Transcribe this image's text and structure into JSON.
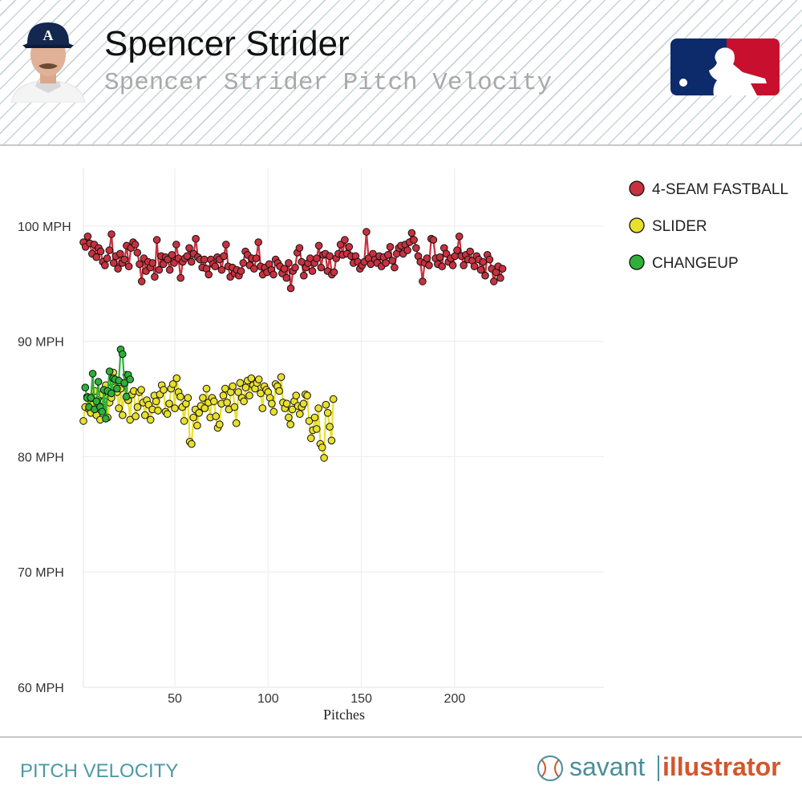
{
  "header": {
    "title": "Spencer Strider",
    "subtitle": "Spencer Strider Pitch Velocity"
  },
  "footer": {
    "section_label": "PITCH VELOCITY",
    "brand_left": "savant",
    "brand_right": "illustrator"
  },
  "colors": {
    "fastball": "#c8313f",
    "slider": "#e9e02c",
    "changeup": "#2eb03a",
    "footer_teal": "#4a9aa5",
    "brand_orange": "#d3572c",
    "mlb_blue": "#0d2a6b",
    "mlb_red": "#c8102e"
  },
  "icons": {
    "avatar": "player-headshot",
    "league_logo": "mlb-logo",
    "brand": "baseball-icon"
  },
  "chart_data": {
    "type": "line",
    "title": "",
    "xlabel": "Pitches",
    "ylabel": "",
    "xlim": [
      1,
      280
    ],
    "ylim": [
      60,
      105
    ],
    "x_ticks": [
      50,
      100,
      150,
      200
    ],
    "y_ticks": [
      {
        "value": 100,
        "label": "100 MPH"
      },
      {
        "value": 90,
        "label": "90 MPH"
      },
      {
        "value": 80,
        "label": "80 MPH"
      },
      {
        "value": 70,
        "label": "70 MPH"
      },
      {
        "value": 60,
        "label": "60 MPH"
      }
    ],
    "grid": true,
    "legend": "right",
    "series": [
      {
        "name": "4-SEAM FASTBALL",
        "x_start": 1,
        "x_step": 1.158,
        "values": [
          98.6,
          98.2,
          99.1,
          98.5,
          97.6,
          98.4,
          97.3,
          98.1,
          97.8,
          96.9,
          96.6,
          97.2,
          97.9,
          99.3,
          96.8,
          97.4,
          96.3,
          97.6,
          96.8,
          97.1,
          98.3,
          96.5,
          98.1,
          98.6,
          98.4,
          97.7,
          96.7,
          95.2,
          97.2,
          96.1,
          96.9,
          96.4,
          96.8,
          95.6,
          98.8,
          96.2,
          97.4,
          96.7,
          97.3,
          97.1,
          96.2,
          97.5,
          96.8,
          98.4,
          97.2,
          95.5,
          96.9,
          97.2,
          97.4,
          98.1,
          96.9,
          97.6,
          98.9,
          97.3,
          97.1,
          96.4,
          97.1,
          96.3,
          95.8,
          97.1,
          96.7,
          96.5,
          97.3,
          97.1,
          96.2,
          97.4,
          98.4,
          96.5,
          95.6,
          96.4,
          95.9,
          96.2,
          95.7,
          96.1,
          96.8,
          97.8,
          97.5,
          96.6,
          97.2,
          96.3,
          97.2,
          98.6,
          96.5,
          95.8,
          96.4,
          96.0,
          96.7,
          96.2,
          95.8,
          97.1,
          96.8,
          96.5,
          95.9,
          96.3,
          95.5,
          96.8,
          94.6,
          96.1,
          96.4,
          97.7,
          98.1,
          96.9,
          95.7,
          96.4,
          96.8,
          97.2,
          96.1,
          96.8,
          97.2,
          98.3,
          96.4,
          97.5,
          97.6,
          96.1,
          97.4,
          95.8,
          96.0,
          97.2,
          97.6,
          98.4,
          97.5,
          98.8,
          97.6,
          98.2,
          97.4,
          96.8,
          97.4,
          96.9,
          96.3,
          96.6,
          96.9,
          99.5,
          97.2,
          96.7,
          97.6,
          97.1,
          96.8,
          97.4,
          96.5,
          97.3,
          96.8,
          97.5,
          98.2,
          97.0,
          96.4,
          97.6,
          98.1,
          98.3,
          97.6,
          98.4,
          97.9,
          98.6,
          99.4,
          98.8,
          98.1,
          97.4,
          96.9,
          95.2,
          96.8,
          97.2,
          96.6,
          98.9,
          98.8,
          97.2,
          96.7,
          97.3,
          96.5,
          98.1,
          97.6,
          96.9,
          97.2,
          96.6,
          97.4,
          97.9,
          99.1,
          97.4,
          96.6,
          97.5,
          97.1,
          97.8,
          97.0,
          96.5,
          97.4,
          97.1,
          96.2,
          96.9,
          95.7,
          97.5,
          97.1,
          96.3,
          95.2,
          96.0,
          96.5,
          95.5,
          96.3
        ]
      },
      {
        "name": "SLIDER",
        "x_start": 1,
        "x_step": 1,
        "values": [
          83.1,
          84.3,
          85.2,
          84.1,
          83.8,
          84.5,
          85.7,
          83.6,
          84.9,
          83.2,
          85.4,
          84.8,
          86.2,
          83.4,
          84.7,
          85.1,
          87.3,
          86.0,
          85.6,
          84.2,
          85.9,
          83.6,
          86.3,
          87.1,
          84.9,
          83.2,
          85.4,
          85.7,
          83.5,
          84.3,
          85.6,
          85.8,
          84.7,
          83.6,
          84.9,
          84.5,
          83.2,
          84.1,
          85.3,
          84.8,
          84.0,
          85.4,
          86.2,
          85.8,
          83.9,
          83.7,
          84.6,
          85.9,
          86.3,
          84.2,
          86.8,
          85.6,
          85.2,
          84.3,
          83.1,
          84.6,
          85.1,
          81.3,
          81.1,
          83.4,
          84.1,
          82.7,
          83.8,
          84.4,
          85.1,
          84.2,
          85.9,
          84.7,
          83.4,
          85.1,
          84.8,
          83.5,
          82.5,
          82.8,
          84.6,
          85.3,
          85.9,
          84.7,
          84.1,
          85.6,
          86.1,
          84.3,
          82.9,
          85.6,
          86.4,
          85.1,
          84.8,
          86.0,
          86.6,
          85.3,
          86.8,
          86.2,
          85.9,
          86.4,
          86.7,
          85.5,
          84.2,
          86.1,
          85.8,
          85.6,
          85.1,
          84.6,
          83.9,
          86.3,
          86.1,
          85.7,
          86.9,
          84.7,
          84.2,
          84.6,
          83.4,
          82.8,
          84.1,
          84.8,
          85.3,
          84.4,
          83.7,
          84.3,
          84.6,
          85.4,
          85.3,
          83.1,
          81.6,
          82.3,
          83.4,
          82.4,
          84.2,
          81.1,
          80.8,
          79.9,
          84.5,
          83.8,
          82.6,
          81.4,
          85.0
        ]
      },
      {
        "name": "CHANGEUP",
        "x_start": 2,
        "x_step": 1,
        "values": [
          86.0,
          85.1,
          84.3,
          85.1,
          87.2,
          84.1,
          84.8,
          86.5,
          84.3,
          83.9,
          85.8,
          83.3,
          85.7,
          87.4,
          85.5,
          86.8,
          86.7,
          85.9,
          86.6,
          89.3,
          88.9,
          86.4,
          85.2,
          87.1,
          86.7
        ]
      }
    ]
  }
}
